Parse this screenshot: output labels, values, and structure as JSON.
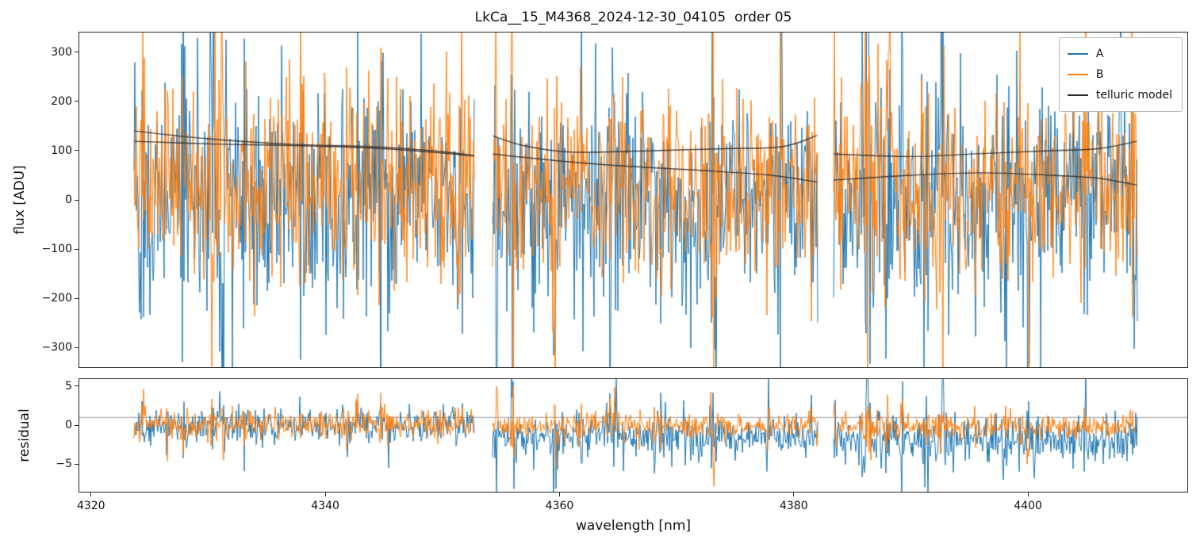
{
  "chart_data": {
    "type": "line",
    "title": "LkCa__15_M4368_2024-12-30_04105  order 05",
    "xlabel": "wavelength [nm]",
    "xlim": [
      4319.0,
      4413.6
    ],
    "x_ticks": [
      4320,
      4340,
      4360,
      4380,
      4400
    ],
    "segments_nm": [
      [
        4323.7,
        4352.7
      ],
      [
        4354.3,
        4382.0
      ],
      [
        4383.4,
        4409.3
      ]
    ],
    "grid": false,
    "legend_position": "upper right",
    "panels": [
      {
        "name": "flux",
        "ylabel": "flux [ADU]",
        "ylim": [
          -340,
          340
        ],
        "y_ticks": [
          300,
          200,
          100,
          0,
          -100,
          -200,
          -300
        ],
        "series": [
          {
            "name": "A",
            "color": "#1f77b4",
            "mean": 0,
            "sigma": 125
          },
          {
            "name": "B",
            "color": "#ff7f0e",
            "mean": 25,
            "sigma": 110
          }
        ],
        "telluric": {
          "name": "telluric model",
          "color": "#2b2b2b",
          "lines": [
            [
              [
                [
                  4323.7,
                  140
                ],
                [
                  4330,
                  124
                ],
                [
                  4337,
                  113
                ],
                [
                  4344,
                  108
                ],
                [
                  4350,
                  98
                ],
                [
                  4352.7,
                  90
                ]
              ],
              [
                [
                  4354.3,
                  130
                ],
                [
                  4357,
                  110
                ],
                [
                  4361,
                  97
                ],
                [
                  4368,
                  100
                ],
                [
                  4374,
                  104
                ],
                [
                  4379,
                  108
                ],
                [
                  4382,
                  131
                ]
              ],
              [
                [
                  4383.4,
                  93
                ],
                [
                  4390,
                  88
                ],
                [
                  4396,
                  94
                ],
                [
                  4402,
                  100
                ],
                [
                  4406,
                  104
                ],
                [
                  4409.3,
                  119
                ]
              ]
            ],
            [
              [
                [
                  4323.7,
                  119
                ],
                [
                  4331,
                  113
                ],
                [
                  4338,
                  110
                ],
                [
                  4345,
                  104
                ],
                [
                  4350,
                  95
                ],
                [
                  4352.7,
                  89
                ]
              ],
              [
                [
                  4354.3,
                  93
                ],
                [
                  4360,
                  79
                ],
                [
                  4366,
                  68
                ],
                [
                  4372,
                  60
                ],
                [
                  4378,
                  50
                ],
                [
                  4382,
                  36
                ]
              ],
              [
                [
                  4383.4,
                  40
                ],
                [
                  4390,
                  50
                ],
                [
                  4396,
                  55
                ],
                [
                  4402,
                  50
                ],
                [
                  4406,
                  44
                ],
                [
                  4409.3,
                  30
                ]
              ]
            ]
          ]
        },
        "legend": {
          "items": [
            {
              "label": "A",
              "color": "#1f77b4"
            },
            {
              "label": "B",
              "color": "#ff7f0e"
            },
            {
              "label": "telluric model",
              "color": "#2b2b2b"
            }
          ]
        }
      },
      {
        "name": "residual",
        "ylabel": "residual",
        "ylim": [
          -8.5,
          5.9
        ],
        "y_ticks": [
          5,
          0,
          -5
        ],
        "hline": 1.0,
        "series": [
          {
            "name": "A",
            "color": "#1f77b4",
            "mean_by_segment": [
              0,
              -1.4,
              -1.9
            ],
            "sigma_by_segment": [
              1.25,
              1.7,
              1.9
            ]
          },
          {
            "name": "B",
            "color": "#ff7f0e",
            "mean_by_segment": [
              0,
              -0.1,
              -0.2
            ],
            "sigma_by_segment": [
              1.15,
              1.05,
              0.95
            ]
          }
        ]
      }
    ]
  }
}
